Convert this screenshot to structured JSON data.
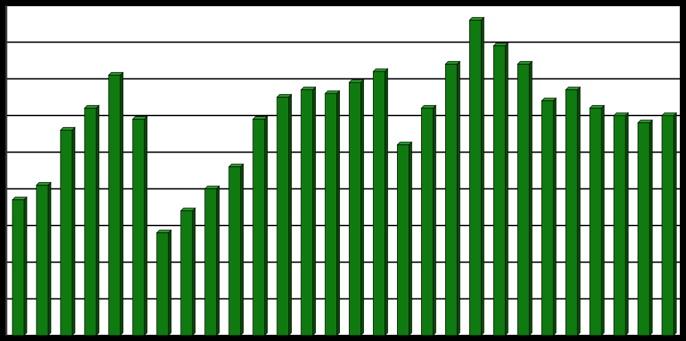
{
  "chart_data": {
    "type": "bar3d",
    "categories": [
      null,
      null,
      null,
      null,
      null,
      null,
      null,
      null,
      null,
      null,
      null,
      null,
      null,
      null,
      null,
      null,
      null,
      null,
      null,
      null,
      null,
      null,
      null,
      null,
      null,
      null,
      null,
      null
    ],
    "values": [
      3.7,
      4.1,
      5.6,
      6.2,
      7.1,
      5.9,
      2.8,
      3.4,
      4.0,
      4.6,
      5.9,
      6.5,
      6.7,
      6.6,
      6.9,
      7.2,
      5.2,
      6.2,
      7.4,
      8.6,
      7.9,
      7.4,
      6.4,
      6.7,
      6.2,
      6.0,
      5.8,
      6.0
    ],
    "color": "#0f7a0f",
    "ylim": [
      0,
      9
    ],
    "yticks": [
      0,
      1,
      2,
      3,
      4,
      5,
      6,
      7,
      8,
      9
    ],
    "grid": true
  }
}
